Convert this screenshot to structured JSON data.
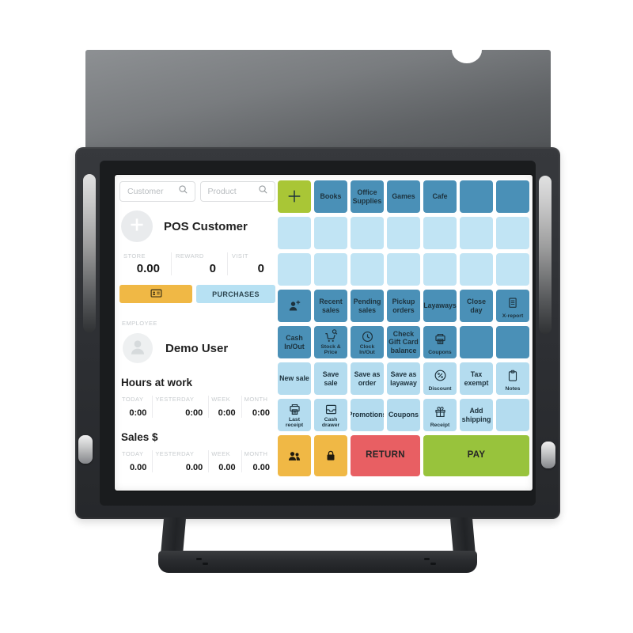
{
  "screen": {
    "search": {
      "customer_placeholder": "Customer",
      "product_placeholder": "Product"
    },
    "customer": {
      "title": "POS Customer",
      "stats": [
        {
          "label": "STORE",
          "value": "0.00"
        },
        {
          "label": "REWARD",
          "value": "0"
        },
        {
          "label": "VISIT",
          "value": "0"
        }
      ],
      "purchases_label": "PURCHASES"
    },
    "employee": {
      "section_label": "EMPLOYEE",
      "name": "Demo User"
    },
    "hours_at_work": {
      "title": "Hours at work",
      "columns": [
        "TODAY",
        "YESTERDAY",
        "WEEK",
        "MONTH"
      ],
      "values": [
        "0:00",
        "0:00",
        "0:00",
        "0:00"
      ]
    },
    "sales": {
      "title": "Sales $",
      "columns": [
        "TODAY",
        "YESTERDAY",
        "WEEK",
        "MONTH"
      ],
      "values": [
        "0.00",
        "0.00",
        "0.00",
        "0.00"
      ]
    },
    "tile_grid": {
      "palette": {
        "green": "#a9c636",
        "blue": "#4a90b7",
        "pale": "#c1e4f4",
        "light": "#b4dcef",
        "yellow": "#f0b845",
        "red": "#e85f63",
        "paygreen": "#98c33c"
      },
      "rows": [
        [
          {
            "icon": "plus",
            "color": "green"
          },
          {
            "label": "Books",
            "color": "blue"
          },
          {
            "label": "Office Supplies",
            "color": "blue"
          },
          {
            "label": "Games",
            "color": "blue"
          },
          {
            "label": "Cafe",
            "color": "blue"
          },
          {
            "color": "blue"
          },
          {
            "color": "blue"
          }
        ],
        [
          {
            "color": "pale"
          },
          {
            "color": "pale"
          },
          {
            "color": "pale"
          },
          {
            "color": "pale"
          },
          {
            "color": "pale"
          },
          {
            "color": "pale"
          },
          {
            "color": "pale"
          }
        ],
        [
          {
            "color": "pale"
          },
          {
            "color": "pale"
          },
          {
            "color": "pale"
          },
          {
            "color": "pale"
          },
          {
            "color": "pale"
          },
          {
            "color": "pale"
          },
          {
            "color": "pale"
          }
        ],
        [
          {
            "icon": "person-add",
            "color": "blue"
          },
          {
            "label": "Recent sales",
            "color": "blue"
          },
          {
            "label": "Pending sales",
            "color": "blue"
          },
          {
            "label": "Pickup orders",
            "color": "blue"
          },
          {
            "label": "Layaways",
            "color": "blue"
          },
          {
            "label": "Close day",
            "color": "blue"
          },
          {
            "icon": "report",
            "label": "X-report",
            "color": "blue"
          }
        ],
        [
          {
            "label": "Cash In/Out",
            "color": "blue"
          },
          {
            "icon": "cart-search",
            "label": "Stock & Price",
            "color": "blue"
          },
          {
            "icon": "clock",
            "label": "Clock In/Out",
            "color": "blue"
          },
          {
            "label": "Check Gift Card balance",
            "color": "blue"
          },
          {
            "icon": "printer",
            "label": "Coupons",
            "color": "blue"
          },
          {
            "color": "blue"
          },
          {
            "color": "blue"
          }
        ],
        [
          {
            "label": "New sale",
            "color": "light"
          },
          {
            "label": "Save sale",
            "color": "light"
          },
          {
            "label": "Save as order",
            "color": "light"
          },
          {
            "label": "Save as layaway",
            "color": "light"
          },
          {
            "icon": "discount",
            "label": "Discount",
            "color": "light"
          },
          {
            "label": "Tax exempt",
            "color": "light"
          },
          {
            "icon": "clipboard",
            "label": "Notes",
            "color": "light"
          }
        ],
        [
          {
            "icon": "printer",
            "label": "Last receipt",
            "color": "light"
          },
          {
            "icon": "drawer",
            "label": "Cash drawer",
            "color": "light"
          },
          {
            "label": "Promotions",
            "color": "light"
          },
          {
            "label": "Coupons",
            "color": "light"
          },
          {
            "icon": "gift",
            "label": "Receipt",
            "color": "light"
          },
          {
            "label": "Add shipping",
            "color": "light"
          },
          {
            "color": "light"
          }
        ],
        [
          {
            "icon": "people",
            "color": "yellow"
          },
          {
            "icon": "lock",
            "color": "yellow"
          },
          {
            "label": "RETURN",
            "color": "red",
            "span": 2,
            "big": true
          },
          {
            "label": "PAY",
            "color": "paygreen",
            "span": 3,
            "big": true
          }
        ]
      ]
    }
  }
}
